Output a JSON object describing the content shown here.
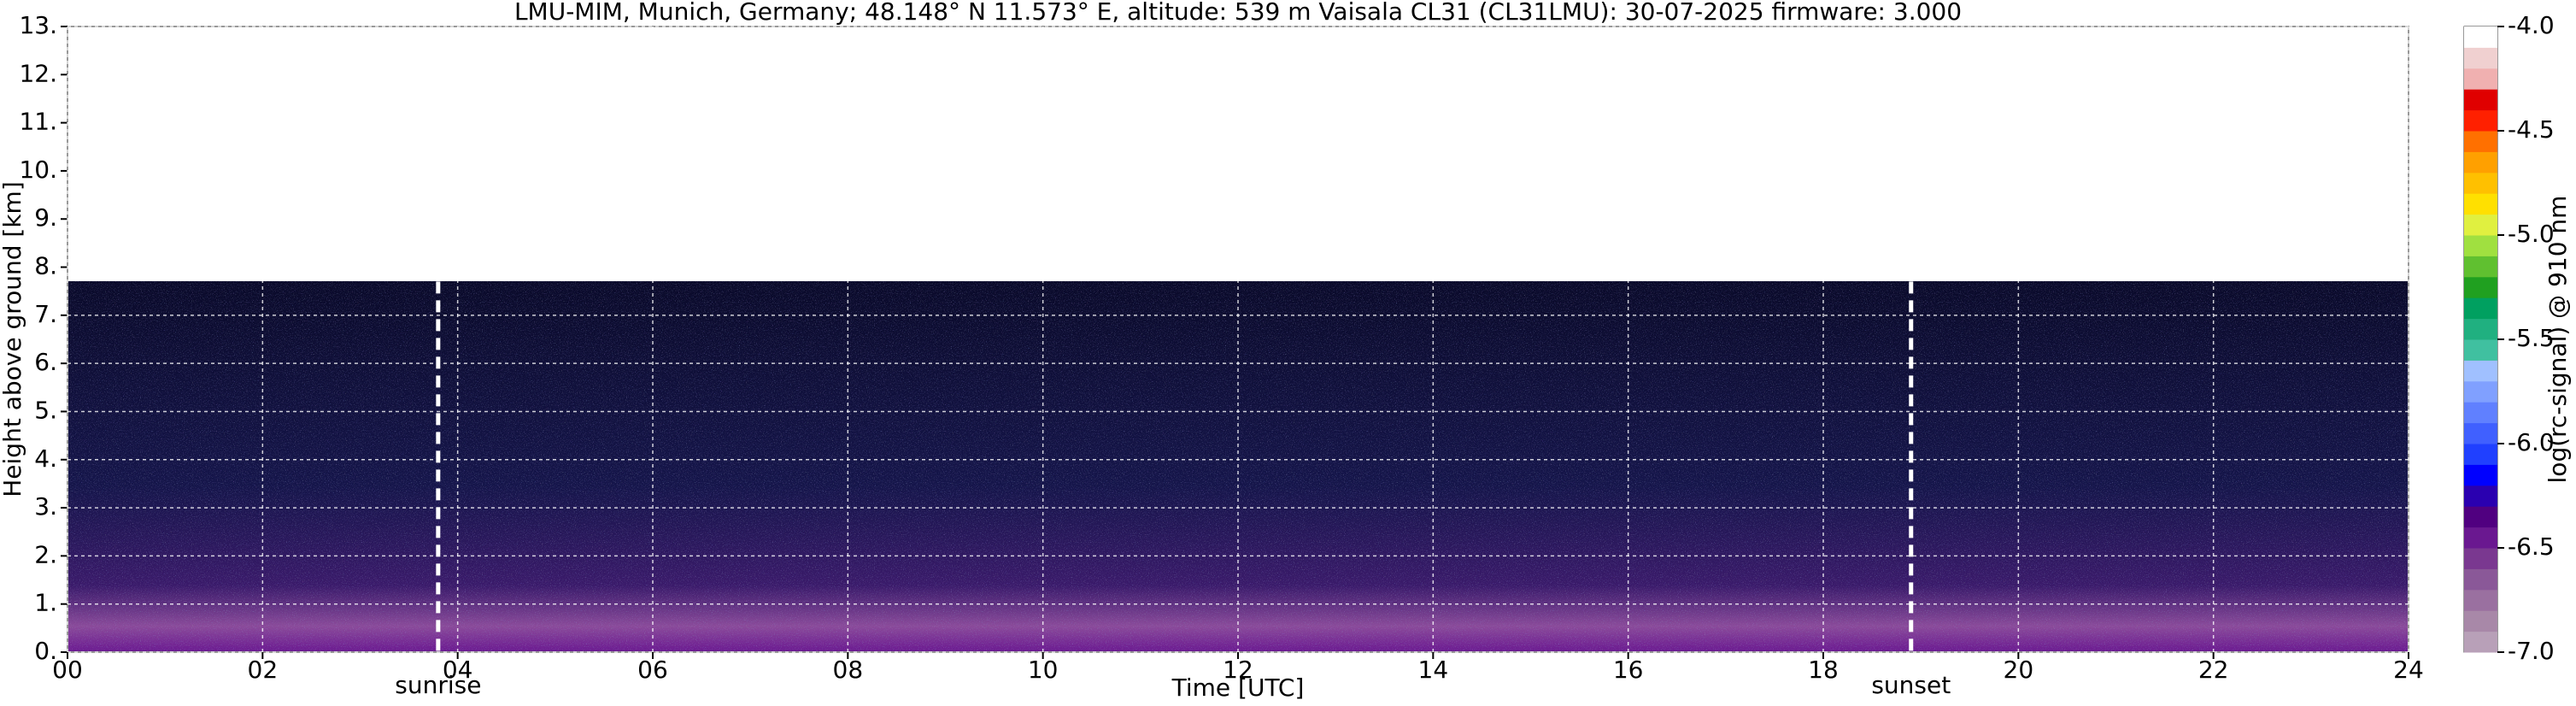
{
  "chart_data": {
    "type": "heatmap",
    "title": "LMU-MIM, Munich, Germany; 48.148° N 11.573° E, altitude: 539 m    Vaisala CL31 (CL31LMU): 30-07-2025    firmware: 3.000",
    "xlabel": "Time [UTC]",
    "ylabel": "Height above ground [km]",
    "xlim": [
      0,
      24
    ],
    "ylim": [
      0,
      13
    ],
    "xticks": [
      {
        "value": 0,
        "label": "00"
      },
      {
        "value": 2,
        "label": "02"
      },
      {
        "value": 4,
        "label": "04"
      },
      {
        "value": 6,
        "label": "06"
      },
      {
        "value": 8,
        "label": "08"
      },
      {
        "value": 10,
        "label": "10"
      },
      {
        "value": 12,
        "label": "12"
      },
      {
        "value": 14,
        "label": "14"
      },
      {
        "value": 16,
        "label": "16"
      },
      {
        "value": 18,
        "label": "18"
      },
      {
        "value": 20,
        "label": "20"
      },
      {
        "value": 22,
        "label": "22"
      },
      {
        "value": 24,
        "label": "24"
      }
    ],
    "yticks": [
      {
        "value": 0,
        "label": "0."
      },
      {
        "value": 1,
        "label": "1."
      },
      {
        "value": 2,
        "label": "2."
      },
      {
        "value": 3,
        "label": "3."
      },
      {
        "value": 4,
        "label": "4."
      },
      {
        "value": 5,
        "label": "5."
      },
      {
        "value": 6,
        "label": "6."
      },
      {
        "value": 7,
        "label": "7."
      },
      {
        "value": 8,
        "label": "8."
      },
      {
        "value": 9,
        "label": "9."
      },
      {
        "value": 10,
        "label": "10."
      },
      {
        "value": 11,
        "label": "11."
      },
      {
        "value": 12,
        "label": "12."
      },
      {
        "value": 13,
        "label": "13."
      }
    ],
    "grid": true,
    "annotations": [
      {
        "label": "sunrise",
        "x": 3.8
      },
      {
        "label": "sunset",
        "x": 18.9
      }
    ],
    "colorbar": {
      "label": "log(rc-signal) @ 910 nm",
      "lim": [
        -7,
        -4
      ],
      "ticks": [
        {
          "value": -7,
          "label": "-7.0"
        },
        {
          "value": -6.5,
          "label": "-6.5"
        },
        {
          "value": -6,
          "label": "-6.0"
        },
        {
          "value": -5.5,
          "label": "-5.5"
        },
        {
          "value": -5,
          "label": "-5.0"
        },
        {
          "value": -4.5,
          "label": "-4.5"
        },
        {
          "value": -4,
          "label": "-4.0"
        }
      ],
      "colors": [
        "#b8a0b8",
        "#a888a8",
        "#9a70a0",
        "#8a5898",
        "#7a3890",
        "#6a1890",
        "#500080",
        "#2a00b0",
        "#0000ff",
        "#2040ff",
        "#4060ff",
        "#6080ff",
        "#80a0ff",
        "#a0c0ff",
        "#40c0a0",
        "#20b080",
        "#00a060",
        "#20a020",
        "#60c030",
        "#a0e040",
        "#e0f040",
        "#ffe000",
        "#ffc000",
        "#ffa000",
        "#ff7000",
        "#ff2000",
        "#e00000",
        "#f0b0b0",
        "#f0d0d0",
        "#ffffff"
      ]
    }
  }
}
